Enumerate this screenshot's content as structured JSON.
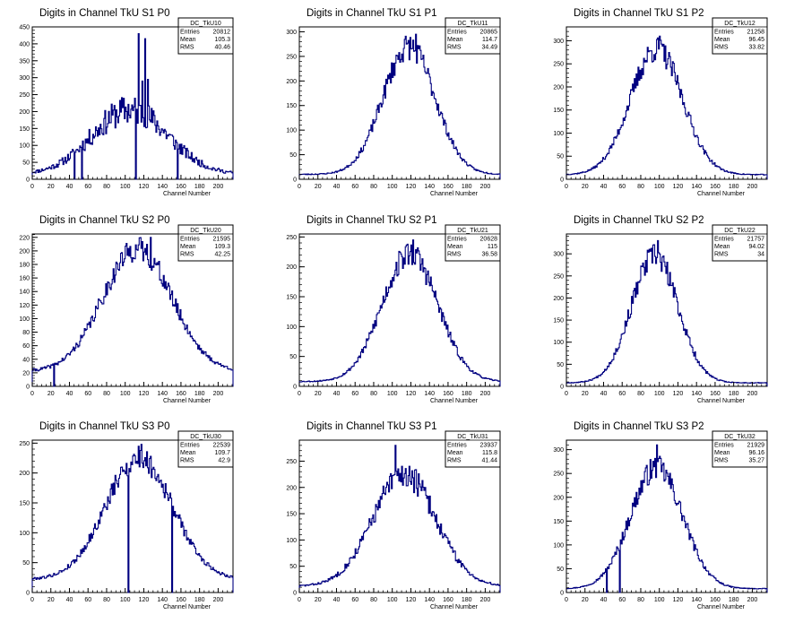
{
  "colors": {
    "line": "#000080",
    "axis": "#000000",
    "background": "#ffffff"
  },
  "chart_data": [
    {
      "type": "histogram",
      "title": "Digits in Channel TkU S1 P0",
      "xlabel": "Channel Number",
      "ylabel": "",
      "xlim": [
        0,
        216
      ],
      "ylim": [
        0,
        450
      ],
      "xticks": [
        0,
        20,
        40,
        60,
        80,
        100,
        120,
        140,
        160,
        180,
        200
      ],
      "yticks": [
        0,
        50,
        100,
        150,
        200,
        250,
        300,
        350,
        400,
        450
      ],
      "stats": {
        "name": "DC_TkU10",
        "entries": "20812",
        "mean": "105.3",
        "rms": "40.46"
      },
      "shape": {
        "mean": 105.3,
        "sigma": 40.46,
        "peak": 205,
        "floor": 15,
        "noise": 0.22,
        "seed": 11
      },
      "spikes": [
        {
          "x": 114,
          "y": 430
        },
        {
          "x": 121,
          "y": 415
        },
        {
          "x": 118,
          "y": 290
        },
        {
          "x": 124,
          "y": 295
        }
      ],
      "dips": [
        {
          "x": 45,
          "y": 0
        },
        {
          "x": 53,
          "y": 0
        },
        {
          "x": 111,
          "y": 0
        },
        {
          "x": 156,
          "y": 0
        }
      ]
    },
    {
      "type": "histogram",
      "title": "Digits in Channel TkU S1 P1",
      "xlabel": "Channel Number",
      "ylabel": "",
      "xlim": [
        0,
        216
      ],
      "ylim": [
        0,
        310
      ],
      "xticks": [
        0,
        20,
        40,
        60,
        80,
        100,
        120,
        140,
        160,
        180,
        200
      ],
      "yticks": [
        0,
        50,
        100,
        150,
        200,
        250,
        300
      ],
      "stats": {
        "name": "DC_TkU11",
        "entries": "20865",
        "mean": "114.7",
        "rms": "34.49"
      },
      "shape": {
        "mean": 118,
        "sigma": 28,
        "peak": 270,
        "floor": 10,
        "noise": 0.1,
        "seed": 23
      },
      "spikes": [
        {
          "x": 125,
          "y": 295
        }
      ],
      "dips": []
    },
    {
      "type": "histogram",
      "title": "Digits in Channel TkU S1 P2",
      "xlabel": "Channel Number",
      "ylabel": "",
      "xlim": [
        0,
        216
      ],
      "ylim": [
        0,
        330
      ],
      "xticks": [
        0,
        20,
        40,
        60,
        80,
        100,
        120,
        140,
        160,
        180,
        200
      ],
      "yticks": [
        0,
        50,
        100,
        150,
        200,
        250,
        300
      ],
      "stats": {
        "name": "DC_TkU12",
        "entries": "21258",
        "mean": "96.45",
        "rms": "33.82"
      },
      "shape": {
        "mean": 97,
        "sigma": 28,
        "peak": 282,
        "floor": 10,
        "noise": 0.1,
        "seed": 37
      },
      "spikes": [
        {
          "x": 100,
          "y": 310
        }
      ],
      "dips": []
    },
    {
      "type": "histogram",
      "title": "Digits in Channel TkU S2 P0",
      "xlabel": "Channel Number",
      "ylabel": "",
      "xlim": [
        0,
        216
      ],
      "ylim": [
        0,
        225
      ],
      "xticks": [
        0,
        20,
        40,
        60,
        80,
        100,
        120,
        140,
        160,
        180,
        200
      ],
      "yticks": [
        0,
        20,
        40,
        60,
        80,
        100,
        120,
        140,
        160,
        180,
        200,
        220
      ],
      "stats": {
        "name": "DC_TkU20",
        "entries": "21595",
        "mean": "109.3",
        "rms": "42.25"
      },
      "shape": {
        "mean": 113,
        "sigma": 37,
        "peak": 203,
        "floor": 22,
        "noise": 0.09,
        "seed": 41
      },
      "spikes": [
        {
          "x": 127,
          "y": 220
        }
      ],
      "dips": [
        {
          "x": 23,
          "y": 0
        }
      ]
    },
    {
      "type": "histogram",
      "title": "Digits in Channel TkU S2 P1",
      "xlabel": "Channel Number",
      "ylabel": "",
      "xlim": [
        0,
        216
      ],
      "ylim": [
        0,
        255
      ],
      "xticks": [
        0,
        20,
        40,
        60,
        80,
        100,
        120,
        140,
        160,
        180,
        200
      ],
      "yticks": [
        0,
        50,
        100,
        150,
        200,
        250
      ],
      "stats": {
        "name": "DC_TkU21",
        "entries": "20628",
        "mean": "115",
        "rms": "36.58"
      },
      "shape": {
        "mean": 119,
        "sigma": 30,
        "peak": 222,
        "floor": 8,
        "noise": 0.1,
        "seed": 53
      },
      "spikes": [
        {
          "x": 122,
          "y": 245
        }
      ],
      "dips": []
    },
    {
      "type": "histogram",
      "title": "Digits in Channel TkU S2 P2",
      "xlabel": "Channel Number",
      "ylabel": "",
      "xlim": [
        0,
        216
      ],
      "ylim": [
        0,
        345
      ],
      "xticks": [
        0,
        20,
        40,
        60,
        80,
        100,
        120,
        140,
        160,
        180,
        200
      ],
      "yticks": [
        0,
        50,
        100,
        150,
        200,
        250,
        300
      ],
      "stats": {
        "name": "DC_TkU22",
        "entries": "21757",
        "mean": "94.02",
        "rms": "34"
      },
      "shape": {
        "mean": 95,
        "sigma": 25,
        "peak": 295,
        "floor": 8,
        "noise": 0.1,
        "seed": 67
      },
      "spikes": [
        {
          "x": 98,
          "y": 330
        }
      ],
      "dips": []
    },
    {
      "type": "histogram",
      "title": "Digits in Channel TkU S3 P0",
      "xlabel": "Channel Number",
      "ylabel": "",
      "xlim": [
        0,
        216
      ],
      "ylim": [
        0,
        255
      ],
      "xticks": [
        0,
        20,
        40,
        60,
        80,
        100,
        120,
        140,
        160,
        180,
        200
      ],
      "yticks": [
        0,
        50,
        100,
        150,
        200,
        250
      ],
      "stats": {
        "name": "DC_TkU30",
        "entries": "22539",
        "mean": "109.7",
        "rms": "42.9"
      },
      "shape": {
        "mean": 115,
        "sigma": 36,
        "peak": 225,
        "floor": 22,
        "noise": 0.09,
        "seed": 79
      },
      "spikes": [
        {
          "x": 117,
          "y": 248
        }
      ],
      "dips": [
        {
          "x": 103,
          "y": 0
        },
        {
          "x": 150,
          "y": 0
        }
      ]
    },
    {
      "type": "histogram",
      "title": "Digits in Channel TkU S3 P1",
      "xlabel": "Channel Number",
      "ylabel": "",
      "xlim": [
        0,
        216
      ],
      "ylim": [
        0,
        290
      ],
      "xticks": [
        0,
        20,
        40,
        60,
        80,
        100,
        120,
        140,
        160,
        180,
        200
      ],
      "yticks": [
        0,
        50,
        100,
        150,
        200,
        250
      ],
      "stats": {
        "name": "DC_TkU31",
        "entries": "23937",
        "mean": "115.8",
        "rms": "41.44"
      },
      "shape": {
        "mean": 113,
        "sigma": 34,
        "peak": 225,
        "floor": 12,
        "noise": 0.12,
        "seed": 83
      },
      "spikes": [
        {
          "x": 103,
          "y": 280
        }
      ],
      "dips": []
    },
    {
      "type": "histogram",
      "title": "Digits in Channel TkU S3 P2",
      "xlabel": "Channel Number",
      "ylabel": "",
      "xlim": [
        0,
        216
      ],
      "ylim": [
        0,
        320
      ],
      "xticks": [
        0,
        20,
        40,
        60,
        80,
        100,
        120,
        140,
        160,
        180,
        200
      ],
      "yticks": [
        0,
        50,
        100,
        150,
        200,
        250,
        300
      ],
      "stats": {
        "name": "DC_TkU32",
        "entries": "21929",
        "mean": "96.16",
        "rms": "35.27"
      },
      "shape": {
        "mean": 97,
        "sigma": 28,
        "peak": 262,
        "floor": 8,
        "noise": 0.1,
        "seed": 97
      },
      "spikes": [
        {
          "x": 97,
          "y": 310
        }
      ],
      "dips": [
        {
          "x": 43,
          "y": 0
        },
        {
          "x": 57,
          "y": 0
        }
      ]
    }
  ]
}
